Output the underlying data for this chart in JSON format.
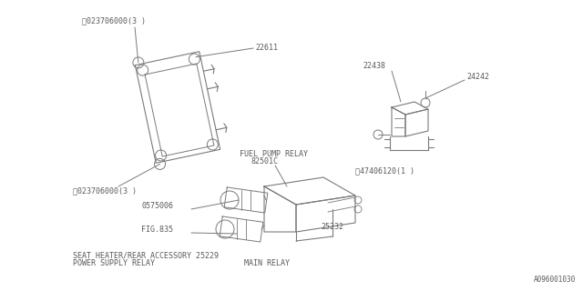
{
  "bg_color": "#ffffff",
  "line_color": "#7a7a7a",
  "text_color": "#5a5a5a",
  "font_family": "monospace",
  "font_size": 6.0,
  "watermark": "A096001030",
  "top_left": {
    "label_top": "ⓝ023706000(3 )",
    "label_bottom": "ⓝ023706000(3 )",
    "part_number": "22611"
  },
  "top_right": {
    "part_top": "22438",
    "part_right": "24242",
    "label_callout": "Ⓢ47406120(1 )"
  },
  "bottom": {
    "label_fuel": "FUEL PUMP RELAY",
    "part_fuel": "82501C",
    "part_0575006": "0575006",
    "fig": "FIG.835",
    "label_seat": "SEAT HEATER/REAR ACCESSORY 25229",
    "label_power": "POWER SUPPLY RELAY",
    "label_main": "MAIN RELAY",
    "part_25232": "25232"
  }
}
